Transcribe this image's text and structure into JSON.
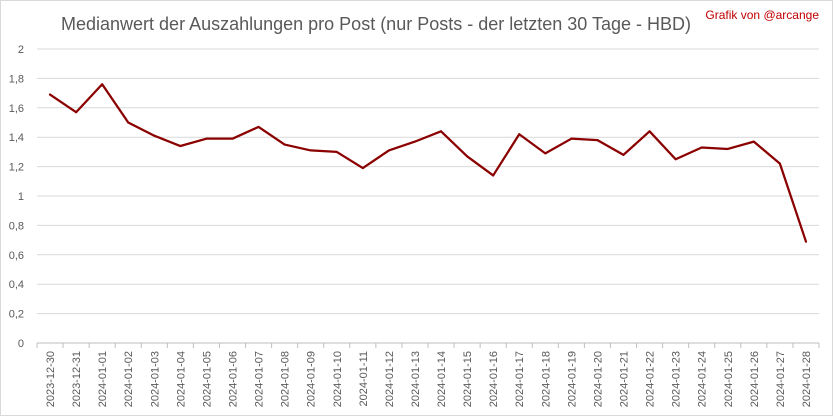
{
  "chart_data": {
    "type": "line",
    "title": "Medianwert der Auszahlungen pro Post (nur Posts - der letzten 30 Tage - HBD)",
    "credit": "Grafik von @arcange",
    "xlabel": "",
    "ylabel": "",
    "ylim": [
      0,
      2
    ],
    "y_ticks": [
      "0",
      "0,2",
      "0,4",
      "0,6",
      "0,8",
      "1",
      "1,2",
      "1,4",
      "1,6",
      "1,8",
      "2"
    ],
    "y_tick_values": [
      0,
      0.2,
      0.4,
      0.6,
      0.8,
      1.0,
      1.2,
      1.4,
      1.6,
      1.8,
      2.0
    ],
    "grid": true,
    "legend": "none",
    "categories": [
      "2023-12-30",
      "2023-12-31",
      "2024-01-01",
      "2024-01-02",
      "2024-01-03",
      "2024-01-04",
      "2024-01-05",
      "2024-01-06",
      "2024-01-07",
      "2024-01-08",
      "2024-01-09",
      "2024-01-10",
      "2024-01-11",
      "2024-01-12",
      "2024-01-13",
      "2024-01-14",
      "2024-01-15",
      "2024-01-16",
      "2024-01-17",
      "2024-01-18",
      "2024-01-19",
      "2024-01-20",
      "2024-01-21",
      "2024-01-22",
      "2024-01-23",
      "2024-01-24",
      "2024-01-25",
      "2024-01-26",
      "2024-01-27",
      "2024-01-28"
    ],
    "series": [
      {
        "values": [
          1.69,
          1.57,
          1.76,
          1.5,
          1.41,
          1.34,
          1.39,
          1.39,
          1.47,
          1.35,
          1.31,
          1.3,
          1.19,
          1.31,
          1.37,
          1.44,
          1.27,
          1.14,
          1.42,
          1.29,
          1.39,
          1.38,
          1.28,
          1.44,
          1.25,
          1.33,
          1.32,
          1.37,
          1.22,
          0.69
        ],
        "color": "#8b0000"
      }
    ],
    "colors": {
      "title": "#595959",
      "credit": "#c00000",
      "grid": "#d9d9d9",
      "axis": "#bfbfbf",
      "tick_label": "#595959"
    }
  }
}
